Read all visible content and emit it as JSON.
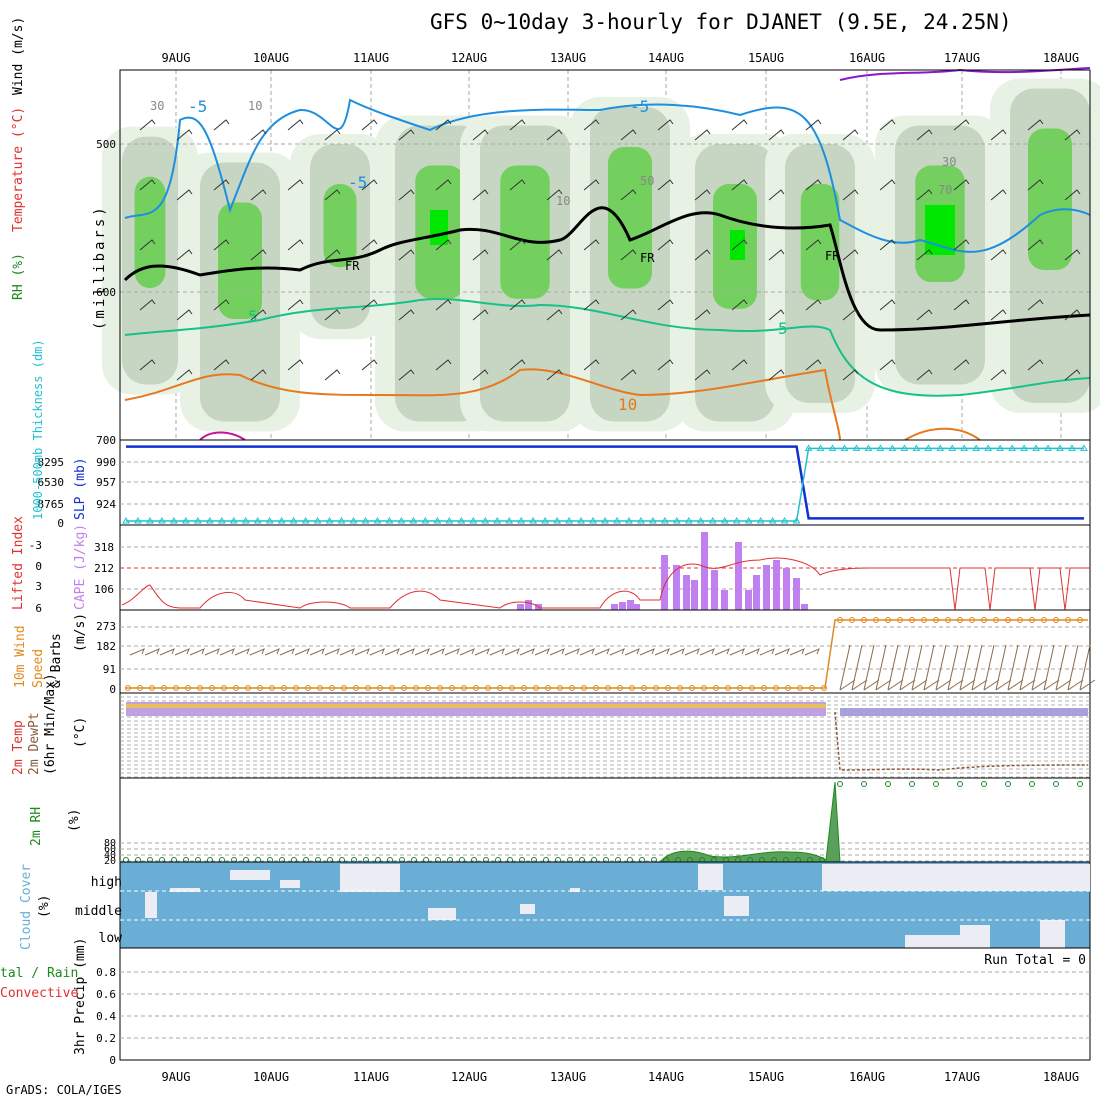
{
  "title": "GFS 0~10day 3-hourly for DJANET (9.5E, 24.25N)",
  "credit": "GrADS: COLA/IGES",
  "run_total": "Run Total = 0",
  "colors": {
    "rh_light": "#e8f2e4",
    "rh_mid": "#c6d6c2",
    "rh_grey": "#a8bba6",
    "rh_green": "#74d05e",
    "rh_bright": "#00e800",
    "temp_cold": "#1e8fe0",
    "temp_mid": "#18c08a",
    "temp_warm": "#e8781e",
    "temp_hot": "#c8149a",
    "temp_veryhot": "#8a18c8",
    "slp": "#1030d0",
    "thickness": "#20c0d0",
    "cape": "#c080f0",
    "lifted": "#e03030",
    "wind_speed": "#e08a1e",
    "wind_barb": "#8a6a4a",
    "rh2m": "#1c8a1c",
    "cloud": "#6aaed6",
    "cloud_gap": "#ececf4",
    "grid": "#aaaaaa"
  },
  "chart_data": [
    {
      "panel": "upper-air",
      "type": "heatmap",
      "title": "GFS 0~10day 3-hourly for DJANET (9.5E, 24.25N)",
      "x_dates": [
        "9AUG",
        "10AUG",
        "11AUG",
        "12AUG",
        "13AUG",
        "14AUG",
        "15AUG",
        "16AUG",
        "17AUG",
        "18AUG"
      ],
      "ylabel": "(millibars)",
      "ylim": [
        700,
        450
      ],
      "yticks": [
        500,
        600,
        700
      ],
      "legend_labels": [
        "RH (%)",
        "Temperature (°C)",
        "Wind (m/s)"
      ],
      "contour_labels": [
        "30",
        "10",
        "50",
        "70",
        "-5",
        "5",
        "10",
        "FR"
      ]
    },
    {
      "panel": "slp-thickness",
      "type": "line",
      "ylabel_left": "1000-500mb Thickness (dm)",
      "ylabel_right": "SLP (mb)",
      "thickness_ticks": [
        "8295",
        "6530",
        "8765",
        "0"
      ],
      "slp_ticks": [
        "990",
        "957",
        "924"
      ],
      "series": [
        {
          "name": "SLP",
          "values": [
            988,
            988,
            988,
            988,
            988,
            988,
            988,
            988,
            988,
            988,
            988,
            988,
            988,
            988,
            988,
            988,
            988,
            988,
            988,
            988,
            988,
            988,
            988,
            988,
            988,
            988,
            988,
            988,
            988,
            988,
            988,
            988,
            988,
            988,
            988,
            988,
            988,
            988,
            988,
            988,
            988,
            988,
            988,
            988,
            988,
            988,
            988,
            988,
            988,
            988,
            988,
            988,
            988,
            988,
            988,
            988,
            988,
            912,
            912,
            912,
            912,
            912,
            912,
            912,
            912,
            912,
            912,
            912,
            912,
            912,
            912,
            912,
            912,
            912,
            912,
            912,
            912,
            912,
            912,
            912,
            912
          ]
        },
        {
          "name": "Thickness",
          "values": [
            0,
            0,
            0,
            0,
            0,
            0,
            0,
            0,
            0,
            0,
            0,
            0,
            0,
            0,
            0,
            0,
            0,
            0,
            0,
            0,
            0,
            0,
            0,
            0,
            0,
            0,
            0,
            0,
            0,
            0,
            0,
            0,
            0,
            0,
            0,
            0,
            0,
            0,
            0,
            0,
            0,
            0,
            0,
            0,
            0,
            0,
            0,
            0,
            0,
            0,
            0,
            0,
            0,
            0,
            0,
            0,
            0,
            8750,
            8750,
            8750,
            8750,
            8750,
            8750,
            8750,
            8750,
            8750,
            8750,
            8750,
            8750,
            8750,
            8750,
            8750,
            8750,
            8750,
            8750,
            8750,
            8750,
            8750,
            8750,
            8750,
            8750
          ]
        }
      ]
    },
    {
      "panel": "cape-li",
      "type": "bar",
      "ylabel_left": "Lifted Index",
      "ylabel_right": "CAPE (J/kg)",
      "li_ticks": [
        "-3",
        "0",
        "3",
        "6"
      ],
      "cape_ticks": [
        "318",
        "212",
        "106"
      ],
      "cape_values": [
        0,
        0,
        0,
        0,
        0,
        0,
        0,
        0,
        0,
        0,
        0,
        0,
        0,
        0,
        0,
        0,
        0,
        0,
        0,
        0,
        0,
        0,
        0,
        0,
        0,
        0,
        0,
        0,
        0,
        0,
        0,
        0,
        0,
        0,
        0,
        0,
        0,
        0,
        0,
        0,
        0,
        0,
        0,
        0,
        0,
        0,
        0,
        0,
        0,
        0,
        0,
        0,
        0,
        0,
        0,
        0,
        0,
        0,
        0,
        0,
        0,
        0,
        0,
        0,
        0,
        0,
        0,
        0,
        0,
        0,
        0,
        0,
        0,
        0,
        0,
        0,
        0,
        0,
        0,
        0,
        0
      ],
      "cape_overlay": [
        [
          41,
          0
        ],
        [
          42,
          0
        ],
        [
          43,
          0
        ],
        [
          44,
          0
        ],
        [
          45,
          0
        ],
        [
          46,
          0
        ],
        [
          47,
          0
        ],
        [
          48,
          0
        ],
        [
          49,
          0
        ],
        [
          50,
          0
        ]
      ]
    },
    {
      "panel": "wind10m",
      "type": "line",
      "ylabel": "10m Wind Speed & Barbs (m/s)",
      "yticks": [
        "273",
        "182",
        "91",
        "0"
      ]
    },
    {
      "panel": "temp2m",
      "type": "line",
      "ylabel": "2m Temp 2m DewPt (6hr Min/Max) (°C)"
    },
    {
      "panel": "rh2m",
      "type": "area",
      "ylabel": "2m RH (%)",
      "yticks": [
        "80",
        "60",
        "40",
        "20"
      ]
    },
    {
      "panel": "cloud",
      "type": "heatmap",
      "ylabel": "Cloud Cover (%)",
      "levels": [
        "high",
        "middle",
        "low"
      ]
    },
    {
      "panel": "precip",
      "type": "bar",
      "ylabel_left": "Total / Rain Convective",
      "ylabel_right": "3hr Precip (mm)",
      "yticks": [
        "0.8",
        "0.6",
        "0.4",
        "0.2",
        "0"
      ],
      "values": []
    }
  ]
}
